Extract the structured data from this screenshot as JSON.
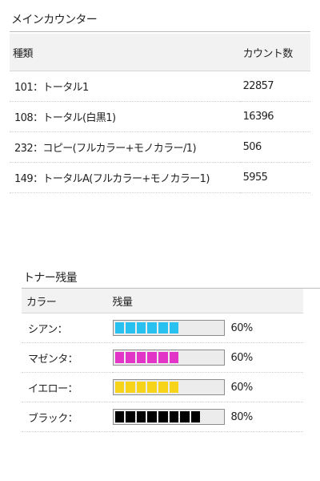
{
  "main_counter": {
    "title": "メインカウンター",
    "headers": {
      "type": "種類",
      "count": "カウント数"
    },
    "rows": [
      {
        "type": "101：トータル1",
        "count": "22857"
      },
      {
        "type": "108：トータル(白黒1)",
        "count": "16396"
      },
      {
        "type": "232：コピー(フルカラー+モノカラー/1)",
        "count": "506"
      },
      {
        "type": "149：トータルA(フルカラー+モノカラー1)",
        "count": "5955"
      }
    ]
  },
  "toner": {
    "title": "トナー残量",
    "headers": {
      "color": "カラー",
      "level": "残量"
    },
    "segments_total": 10,
    "rows": [
      {
        "label": "シアン：",
        "percent_text": "60%",
        "level_fraction": 0.6,
        "color": "#29c2f0"
      },
      {
        "label": "マゼンタ：",
        "percent_text": "60%",
        "level_fraction": 0.6,
        "color": "#e235c8"
      },
      {
        "label": "イエロー：",
        "percent_text": "60%",
        "level_fraction": 0.6,
        "color": "#f7d31a"
      },
      {
        "label": "ブラック：",
        "percent_text": "80%",
        "level_fraction": 0.8,
        "color": "#000000"
      }
    ]
  }
}
